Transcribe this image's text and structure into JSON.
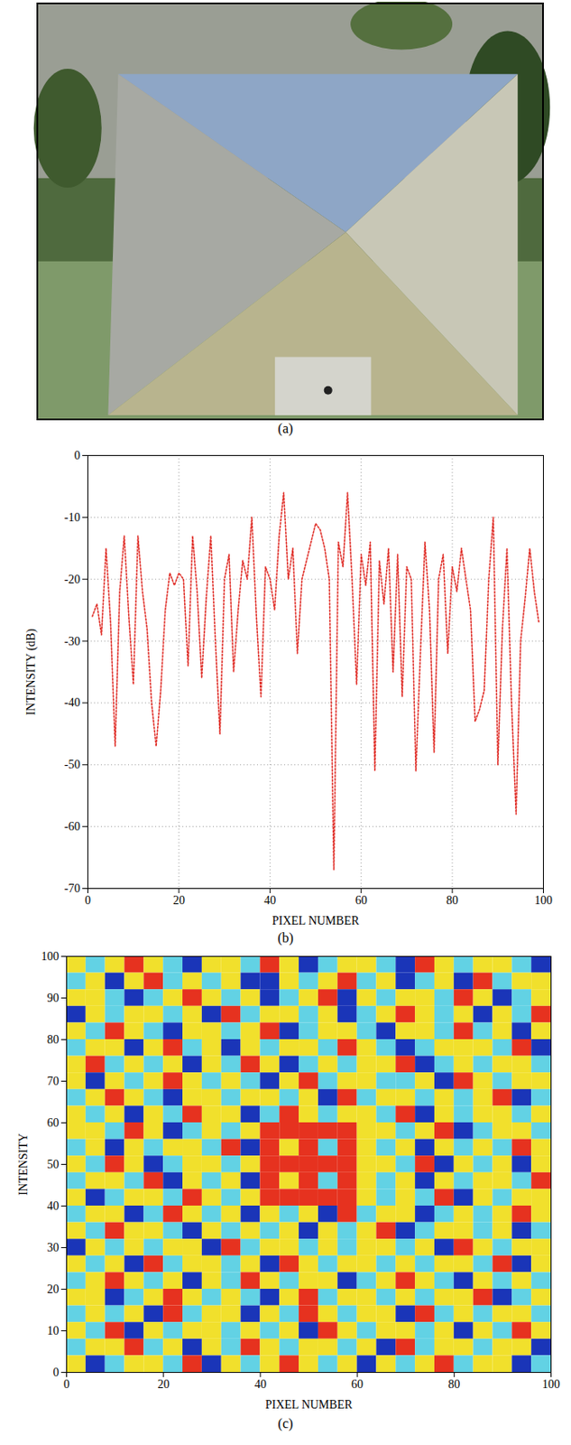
{
  "chart_data": [
    {
      "type": "image",
      "caption": "(a)"
    },
    {
      "type": "line",
      "caption": "(b)",
      "xlabel": "PIXEL NUMBER",
      "ylabel": "INTENSITY (dB)",
      "color": "#e0302a",
      "line_style": "dotted",
      "grid": true,
      "xlim": [
        0,
        100
      ],
      "xticks": [
        0,
        20,
        40,
        60,
        80,
        100
      ],
      "ylim": [
        -70,
        0
      ],
      "yticks": [
        -70,
        -60,
        -50,
        -40,
        -30,
        -20,
        -10,
        0
      ],
      "x": [
        1,
        2,
        3,
        4,
        5,
        6,
        7,
        8,
        9,
        10,
        11,
        12,
        13,
        14,
        15,
        16,
        17,
        18,
        19,
        20,
        21,
        22,
        23,
        24,
        25,
        26,
        27,
        28,
        29,
        30,
        31,
        32,
        33,
        34,
        35,
        36,
        37,
        38,
        39,
        40,
        41,
        42,
        43,
        44,
        45,
        46,
        47,
        48,
        49,
        50,
        51,
        52,
        53,
        54,
        55,
        56,
        57,
        58,
        59,
        60,
        61,
        62,
        63,
        64,
        65,
        66,
        67,
        68,
        69,
        70,
        71,
        72,
        73,
        74,
        75,
        76,
        77,
        78,
        79,
        80,
        81,
        82,
        83,
        84,
        85,
        86,
        87,
        88,
        89,
        90,
        91,
        92,
        93,
        94,
        95,
        96,
        97,
        98,
        99
      ],
      "values": [
        -26,
        -24,
        -29,
        -15,
        -27,
        -47,
        -22,
        -13,
        -26,
        -37,
        -13,
        -22,
        -28,
        -40,
        -47,
        -38,
        -25,
        -19,
        -21,
        -19,
        -20,
        -34,
        -13,
        -22,
        -36,
        -23,
        -13,
        -30,
        -45,
        -20,
        -16,
        -35,
        -25,
        -17,
        -20,
        -10,
        -26,
        -39,
        -18,
        -20,
        -25,
        -13,
        -6,
        -20,
        -15,
        -32,
        -20,
        -17,
        -14,
        -11,
        -12,
        -15,
        -20,
        -67,
        -14,
        -18,
        -6,
        -20,
        -37,
        -16,
        -21,
        -14,
        -51,
        -17,
        -24,
        -15,
        -35,
        -16,
        -39,
        -18,
        -20,
        -51,
        -32,
        -14,
        -25,
        -48,
        -20,
        -16,
        -32,
        -18,
        -22,
        -15,
        -20,
        -25,
        -43,
        -41,
        -38,
        -20,
        -10,
        -50,
        -28,
        -15,
        -40,
        -58,
        -30,
        -23,
        -15,
        -22,
        -27
      ]
    },
    {
      "type": "heatmap",
      "caption": "(c)",
      "xlabel": "PIXEL NUMBER",
      "ylabel": "INTENSITY",
      "xlim": [
        0,
        100
      ],
      "xticks": [
        0,
        20,
        40,
        60,
        80,
        100
      ],
      "ylim": [
        0,
        100
      ],
      "yticks": [
        0,
        10,
        20,
        30,
        40,
        50,
        60,
        70,
        80,
        90,
        100
      ],
      "colors": [
        "#1a35b8",
        "#62d2e4",
        "#f1e02c",
        "#e6321f"
      ],
      "cells": [
        [
          2,
          1,
          2,
          3,
          2,
          1,
          0,
          2,
          2,
          1,
          3,
          2,
          0,
          1,
          2,
          2,
          1,
          0,
          3,
          2,
          1,
          2,
          2,
          1,
          0
        ],
        [
          1,
          2,
          0,
          2,
          3,
          1,
          2,
          1,
          2,
          0,
          0,
          2,
          1,
          2,
          3,
          1,
          2,
          0,
          1,
          2,
          0,
          3,
          1,
          2,
          2
        ],
        [
          2,
          2,
          1,
          0,
          1,
          2,
          3,
          2,
          1,
          2,
          0,
          1,
          2,
          3,
          0,
          2,
          1,
          2,
          2,
          1,
          3,
          2,
          0,
          1,
          2
        ],
        [
          0,
          2,
          1,
          2,
          2,
          1,
          2,
          0,
          3,
          1,
          2,
          2,
          1,
          2,
          0,
          1,
          2,
          3,
          2,
          1,
          2,
          0,
          2,
          1,
          3
        ],
        [
          2,
          1,
          3,
          2,
          1,
          0,
          2,
          2,
          1,
          2,
          3,
          0,
          1,
          2,
          2,
          1,
          0,
          2,
          2,
          1,
          3,
          1,
          2,
          0,
          2
        ],
        [
          1,
          2,
          2,
          0,
          2,
          3,
          1,
          2,
          0,
          2,
          1,
          2,
          2,
          1,
          3,
          2,
          1,
          0,
          1,
          2,
          2,
          2,
          1,
          3,
          0
        ],
        [
          2,
          3,
          1,
          2,
          1,
          2,
          0,
          2,
          1,
          3,
          2,
          0,
          1,
          2,
          1,
          2,
          2,
          3,
          0,
          1,
          2,
          1,
          2,
          2,
          1
        ],
        [
          2,
          0,
          2,
          1,
          2,
          3,
          2,
          1,
          2,
          1,
          0,
          2,
          3,
          1,
          2,
          2,
          1,
          1,
          2,
          0,
          3,
          2,
          1,
          2,
          2
        ],
        [
          1,
          2,
          3,
          2,
          1,
          0,
          2,
          2,
          1,
          2,
          2,
          1,
          2,
          0,
          3,
          1,
          2,
          2,
          1,
          2,
          1,
          2,
          3,
          0,
          1
        ],
        [
          2,
          1,
          2,
          0,
          2,
          1,
          3,
          2,
          2,
          0,
          1,
          3,
          2,
          1,
          2,
          2,
          1,
          3,
          0,
          2,
          1,
          2,
          2,
          1,
          2
        ],
        [
          2,
          2,
          1,
          3,
          2,
          0,
          1,
          2,
          1,
          2,
          3,
          3,
          3,
          3,
          3,
          2,
          2,
          1,
          2,
          3,
          0,
          1,
          2,
          2,
          1
        ],
        [
          1,
          2,
          0,
          2,
          1,
          2,
          2,
          1,
          3,
          0,
          3,
          2,
          3,
          1,
          3,
          2,
          1,
          2,
          0,
          2,
          1,
          2,
          1,
          3,
          2
        ],
        [
          2,
          1,
          3,
          2,
          0,
          1,
          2,
          2,
          1,
          2,
          3,
          3,
          3,
          3,
          3,
          2,
          2,
          1,
          3,
          0,
          2,
          1,
          2,
          0,
          2
        ],
        [
          1,
          2,
          2,
          1,
          3,
          0,
          2,
          1,
          2,
          0,
          3,
          2,
          3,
          1,
          3,
          2,
          1,
          2,
          0,
          2,
          1,
          2,
          2,
          1,
          3
        ],
        [
          2,
          0,
          1,
          2,
          2,
          1,
          3,
          2,
          1,
          2,
          3,
          3,
          3,
          3,
          3,
          2,
          1,
          2,
          1,
          3,
          0,
          2,
          1,
          2,
          2
        ],
        [
          1,
          2,
          2,
          0,
          1,
          3,
          2,
          1,
          2,
          0,
          2,
          1,
          2,
          0,
          3,
          1,
          2,
          2,
          0,
          1,
          2,
          1,
          2,
          3,
          2
        ],
        [
          2,
          1,
          3,
          2,
          2,
          1,
          0,
          2,
          1,
          2,
          1,
          2,
          0,
          2,
          1,
          2,
          3,
          0,
          1,
          2,
          2,
          1,
          2,
          0,
          1
        ],
        [
          0,
          2,
          1,
          2,
          1,
          2,
          2,
          0,
          3,
          1,
          2,
          2,
          1,
          2,
          1,
          2,
          2,
          1,
          2,
          0,
          3,
          2,
          1,
          2,
          2
        ],
        [
          2,
          1,
          2,
          0,
          3,
          1,
          2,
          2,
          1,
          2,
          0,
          3,
          2,
          1,
          2,
          2,
          1,
          2,
          1,
          2,
          2,
          1,
          3,
          0,
          2
        ],
        [
          1,
          2,
          3,
          2,
          1,
          2,
          0,
          2,
          1,
          3,
          2,
          1,
          2,
          2,
          0,
          1,
          2,
          3,
          2,
          1,
          0,
          2,
          1,
          2,
          1
        ],
        [
          2,
          2,
          0,
          1,
          2,
          3,
          2,
          1,
          2,
          1,
          0,
          2,
          3,
          1,
          2,
          2,
          1,
          2,
          1,
          2,
          2,
          3,
          0,
          1,
          2
        ],
        [
          1,
          2,
          1,
          2,
          0,
          3,
          1,
          2,
          2,
          0,
          2,
          1,
          3,
          2,
          1,
          2,
          2,
          0,
          3,
          1,
          2,
          1,
          2,
          2,
          1
        ],
        [
          2,
          1,
          3,
          0,
          2,
          1,
          2,
          2,
          1,
          2,
          1,
          2,
          0,
          3,
          2,
          1,
          2,
          2,
          1,
          2,
          0,
          2,
          1,
          3,
          2
        ],
        [
          1,
          2,
          2,
          3,
          1,
          2,
          0,
          2,
          1,
          3,
          2,
          1,
          2,
          2,
          1,
          2,
          0,
          3,
          1,
          2,
          2,
          1,
          2,
          2,
          0
        ],
        [
          2,
          0,
          1,
          2,
          2,
          1,
          3,
          0,
          2,
          1,
          2,
          3,
          2,
          1,
          2,
          0,
          2,
          1,
          2,
          3,
          1,
          2,
          2,
          0,
          1
        ]
      ]
    }
  ]
}
